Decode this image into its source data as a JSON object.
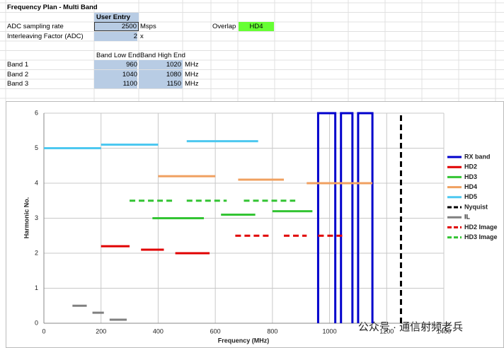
{
  "sheet": {
    "title": "Frequency Plan - Multi Band",
    "user_entry_header": "User Entry",
    "adc_rate": {
      "label": "ADC sampling rate",
      "value": 2500,
      "unit": "Msps"
    },
    "overlap": {
      "label": "Overlap",
      "value": "HD4"
    },
    "interleave": {
      "label": "Interleaving Factor (ADC)",
      "value": 2,
      "unit": "x"
    },
    "band_headers": [
      "Band Low End",
      "Band High End"
    ],
    "bands": [
      {
        "name": "Band 1",
        "low": 960,
        "high": 1020,
        "unit": "MHz"
      },
      {
        "name": "Band 2",
        "low": 1040,
        "high": 1080,
        "unit": "MHz"
      },
      {
        "name": "Band 3",
        "low": 1100,
        "high": 1150,
        "unit": "MHz"
      }
    ]
  },
  "chart_data": {
    "type": "line",
    "x_label": "Frequency (MHz)",
    "y_label": "Harmonic No.",
    "watermark": "公众号 · 通信射频老兵",
    "xlim": [
      0,
      1400
    ],
    "xticks": [
      0,
      200,
      400,
      600,
      800,
      1000,
      1200,
      1400
    ],
    "ylim": [
      0,
      6
    ],
    "yticks": [
      0,
      1,
      2,
      3,
      4,
      5,
      6
    ],
    "grid": true,
    "series": [
      {
        "name": "RX band",
        "color": "#0000cc",
        "dash": false,
        "x": [
          960,
          960,
          1020,
          1020,
          null,
          1040,
          1040,
          1080,
          1080,
          null,
          1100,
          1100,
          1150,
          1150
        ],
        "values": [
          0,
          6,
          6,
          0,
          null,
          0,
          6,
          6,
          0,
          null,
          0,
          6,
          6,
          0
        ]
      },
      {
        "name": "HD2",
        "color": "#e00000",
        "dash": false,
        "x": [
          200,
          300,
          null,
          340,
          420,
          null,
          460,
          580
        ],
        "values": [
          2.2,
          2.2,
          null,
          2.1,
          2.1,
          null,
          2,
          2
        ]
      },
      {
        "name": "HD3",
        "color": "#33c433",
        "dash": false,
        "x": [
          380,
          560,
          null,
          620,
          740,
          null,
          800,
          940
        ],
        "values": [
          3,
          3,
          null,
          3.1,
          3.1,
          null,
          3.2,
          3.2
        ]
      },
      {
        "name": "HD4",
        "color": "#f0a060",
        "dash": false,
        "x": [
          400,
          600,
          null,
          680,
          840,
          null,
          920,
          1150
        ],
        "values": [
          4.2,
          4.2,
          null,
          4.1,
          4.1,
          null,
          4,
          4
        ]
      },
      {
        "name": "HD5",
        "color": "#4dc8f0",
        "dash": false,
        "x": [
          0,
          200,
          null,
          200,
          400,
          null,
          500,
          750
        ],
        "values": [
          5,
          5,
          null,
          5.1,
          5.1,
          null,
          5.2,
          5.2
        ]
      },
      {
        "name": "Nyquist",
        "color": "#000000",
        "dash": true,
        "x": [
          1250,
          1250
        ],
        "values": [
          0,
          6
        ]
      },
      {
        "name": "IL",
        "color": "#808080",
        "dash": false,
        "x": [
          100,
          150,
          null,
          170,
          210,
          null,
          230,
          290
        ],
        "values": [
          0.5,
          0.5,
          null,
          0.3,
          0.3,
          null,
          0.1,
          0.1
        ]
      },
      {
        "name": "HD2 Image",
        "color": "#e00000",
        "dash": true,
        "x": [
          670,
          790,
          null,
          840,
          920,
          null,
          960,
          1050
        ],
        "values": [
          2.5,
          2.5,
          null,
          2.5,
          2.5,
          null,
          2.5,
          2.5
        ]
      },
      {
        "name": "HD3 Image",
        "color": "#33c433",
        "dash": true,
        "x": [
          300,
          460,
          null,
          500,
          640,
          null,
          700,
          880
        ],
        "values": [
          3.5,
          3.5,
          null,
          3.5,
          3.5,
          null,
          3.5,
          3.5
        ]
      }
    ]
  }
}
